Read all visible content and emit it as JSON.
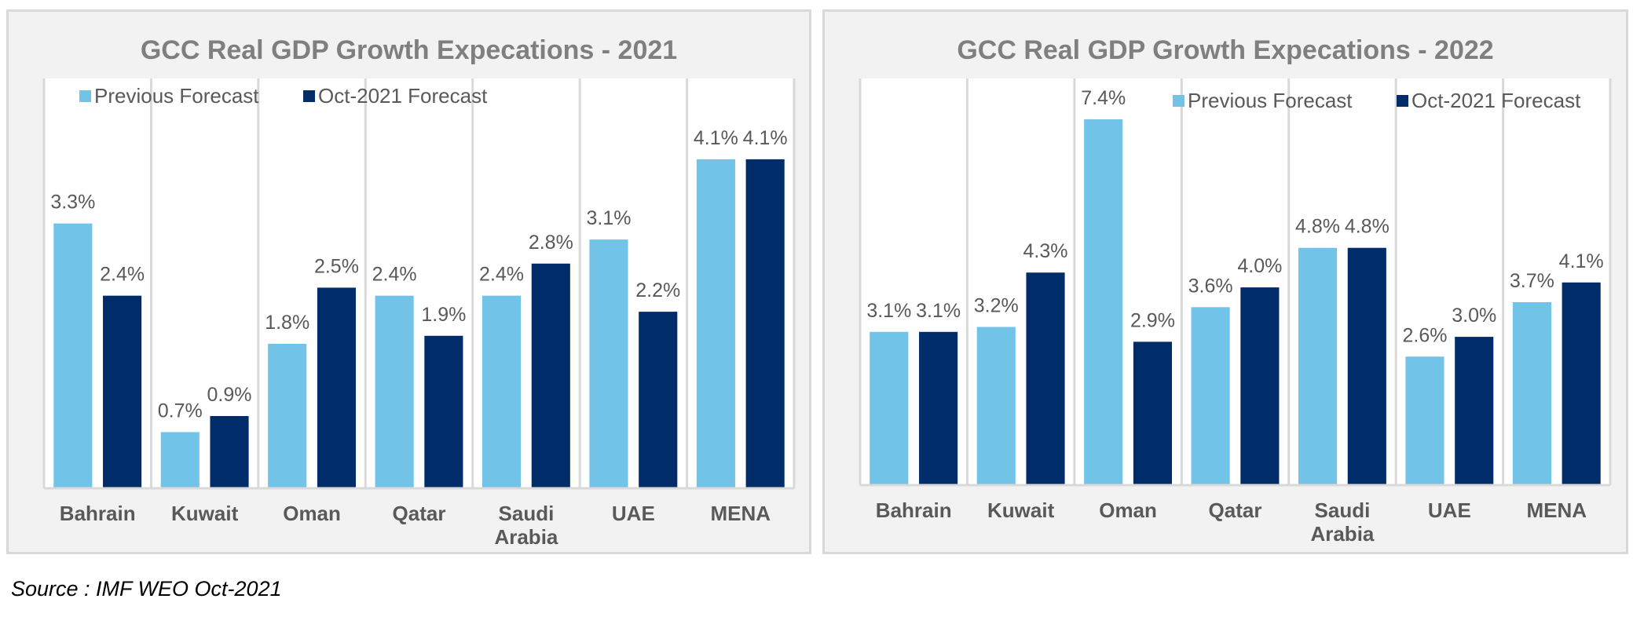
{
  "colors": {
    "previous": "#72c3e8",
    "oct2021": "#002d6a",
    "text": "#595959",
    "title": "#7f7f7f",
    "grid": "#d9d9d9"
  },
  "chart_data": [
    {
      "type": "bar",
      "title": "GCC Real GDP Growth Expecations - 2021",
      "categories": [
        [
          "Bahrain"
        ],
        [
          "Kuwait"
        ],
        [
          "Oman"
        ],
        [
          "Qatar"
        ],
        [
          "Saudi",
          "Arabia"
        ],
        [
          "UAE"
        ],
        [
          "MENA"
        ]
      ],
      "series": [
        {
          "name": "Previous Forecast",
          "values": [
            3.3,
            0.7,
            1.8,
            2.4,
            2.4,
            3.1,
            4.1
          ],
          "labels": [
            "3.3%",
            "0.7%",
            "1.8%",
            "2.4%",
            "2.4%",
            "3.1%",
            "4.1%"
          ]
        },
        {
          "name": "Oct-2021 Forecast",
          "values": [
            2.4,
            0.9,
            2.5,
            1.9,
            2.8,
            2.2,
            4.1
          ],
          "labels": [
            "2.4%",
            "0.9%",
            "2.5%",
            "1.9%",
            "2.8%",
            "2.2%",
            "4.1%"
          ]
        }
      ],
      "ylim": [
        0,
        4.5
      ],
      "legend": "top-left",
      "grid": "vertical"
    },
    {
      "type": "bar",
      "title": "GCC Real GDP Growth Expecations - 2022",
      "categories": [
        [
          "Bahrain"
        ],
        [
          "Kuwait"
        ],
        [
          "Oman"
        ],
        [
          "Qatar"
        ],
        [
          "Saudi",
          "Arabia"
        ],
        [
          "UAE"
        ],
        [
          "MENA"
        ]
      ],
      "series": [
        {
          "name": "Previous Forecast",
          "values": [
            3.1,
            3.2,
            7.4,
            3.6,
            4.8,
            2.6,
            3.7
          ],
          "labels": [
            "3.1%",
            "3.2%",
            "7.4%",
            "3.6%",
            "4.8%",
            "2.6%",
            "3.7%"
          ]
        },
        {
          "name": "Oct-2021 Forecast",
          "values": [
            3.1,
            4.3,
            2.9,
            4.0,
            4.8,
            3.0,
            4.1
          ],
          "labels": [
            "3.1%",
            "4.3%",
            "2.9%",
            "4.0%",
            "4.8%",
            "3.0%",
            "4.1%"
          ]
        }
      ],
      "ylim": [
        0,
        7.4
      ],
      "legend": "top-right",
      "grid": "vertical"
    }
  ],
  "source": "Source : IMF WEO Oct-2021"
}
